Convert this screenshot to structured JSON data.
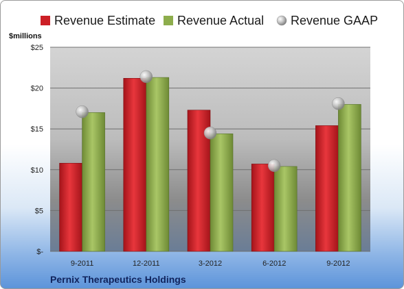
{
  "chart_data": {
    "type": "bar",
    "categories": [
      "9-2011",
      "12-2011",
      "3-2012",
      "6-2012",
      "9-2012"
    ],
    "series": [
      {
        "name": "Revenue Estimate",
        "values": [
          10.8,
          21.2,
          17.3,
          10.7,
          15.4
        ],
        "color": "#cc1f26",
        "kind": "bar"
      },
      {
        "name": "Revenue Actual",
        "values": [
          17.0,
          21.3,
          14.4,
          10.4,
          18.0
        ],
        "color": "#8dad4c",
        "kind": "bar"
      },
      {
        "name": "Revenue GAAP",
        "values": [
          17.1,
          21.4,
          14.5,
          10.5,
          18.1
        ],
        "color": "#a8a8a8",
        "kind": "marker"
      }
    ],
    "ylabel": "$millions",
    "ylim": [
      0,
      25
    ],
    "yticks": [
      0,
      5,
      10,
      15,
      20,
      25
    ],
    "ytick_labels": [
      "$-",
      "$5",
      "$10",
      "$15",
      "$20",
      "$25"
    ],
    "grid": true,
    "legend_position": "top",
    "company": "Pernix Therapeutics Holdings"
  }
}
